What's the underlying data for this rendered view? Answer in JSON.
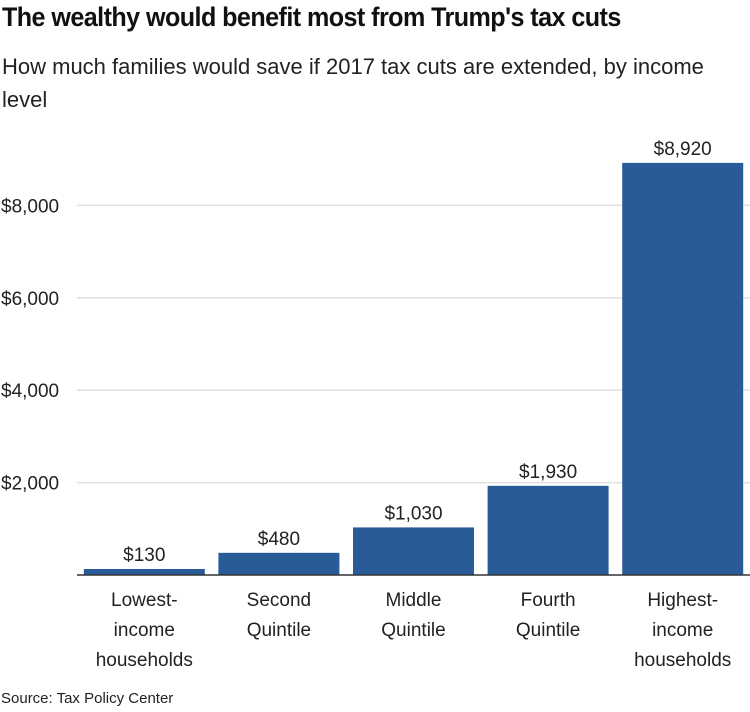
{
  "header": {
    "title": "The wealthy would benefit most from Trump's tax cuts",
    "subtitle": "How much families would save if 2017 tax cuts are extended, by income level"
  },
  "footer": {
    "source": "Source: Tax Policy Center"
  },
  "colors": {
    "bar": "#2a5b99",
    "grid": "#e0e0e0",
    "axis": "#333333",
    "text": "#222222"
  },
  "chart_data": {
    "type": "bar",
    "title": "The wealthy would benefit most from Trump's tax cuts",
    "subtitle": "How much families would save if 2017 tax cuts are extended, by income level",
    "xlabel": "",
    "ylabel": "",
    "categories": [
      [
        "Lowest-",
        "income",
        "households"
      ],
      [
        "Second",
        "Quintile"
      ],
      [
        "Middle",
        "Quintile"
      ],
      [
        "Fourth",
        "Quintile"
      ],
      [
        "Highest-",
        "income",
        "households"
      ]
    ],
    "values": [
      130,
      480,
      1030,
      1930,
      8920
    ],
    "data_labels": [
      "$130",
      "$480",
      "$1,030",
      "$1,930",
      "$8,920"
    ],
    "yticks": [
      2000,
      4000,
      6000,
      8000
    ],
    "ytick_labels": [
      "$2,000",
      "$4,000",
      "$6,000",
      "$8,000"
    ],
    "ylim": [
      0,
      9000
    ],
    "grid": true,
    "legend": "none"
  }
}
